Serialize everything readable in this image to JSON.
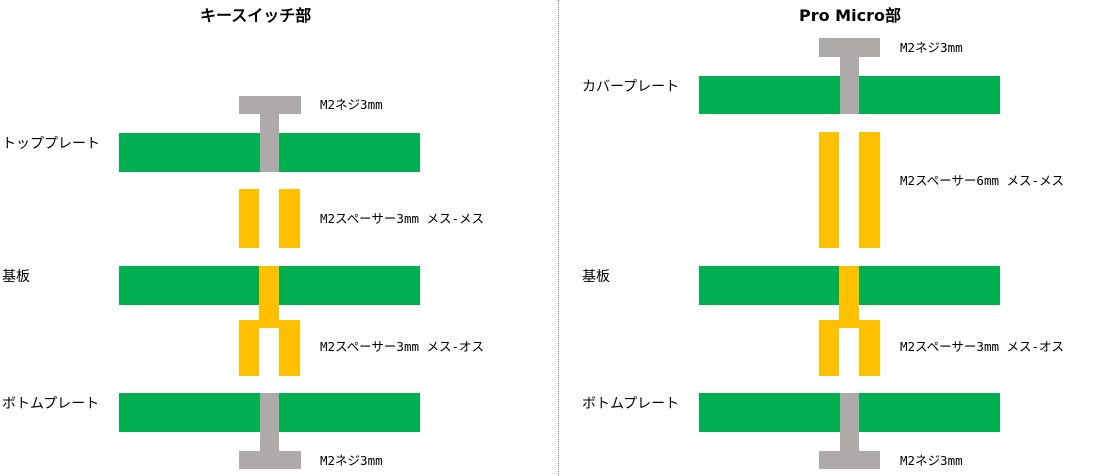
{
  "colors": {
    "board": "#00b050",
    "spacer": "#ffc000",
    "screw": "#aeaaaa",
    "divider": "#888888"
  },
  "left": {
    "title": "キースイッチ部",
    "layers": {
      "top_plate": "トッププレート",
      "pcb": "基板",
      "bottom_plate": "ボトムプレート"
    },
    "parts": {
      "screw_top": "M2ネジ3mm",
      "spacer_ff": "M2スペーサー3mm メス-メス",
      "spacer_fm": "M2スペーサー3mm メス-オス",
      "screw_bottom": "M2ネジ3mm"
    }
  },
  "right": {
    "title": "Pro Micro部",
    "layers": {
      "cover_plate": "カバープレート",
      "pcb": "基板",
      "bottom_plate": "ボトムプレート"
    },
    "parts": {
      "screw_top": "M2ネジ3mm",
      "spacer_ff": "M2スペーサー6mm メス-メス",
      "spacer_fm": "M2スペーサー3mm メス-オス",
      "screw_bottom": "M2ネジ3mm"
    }
  }
}
